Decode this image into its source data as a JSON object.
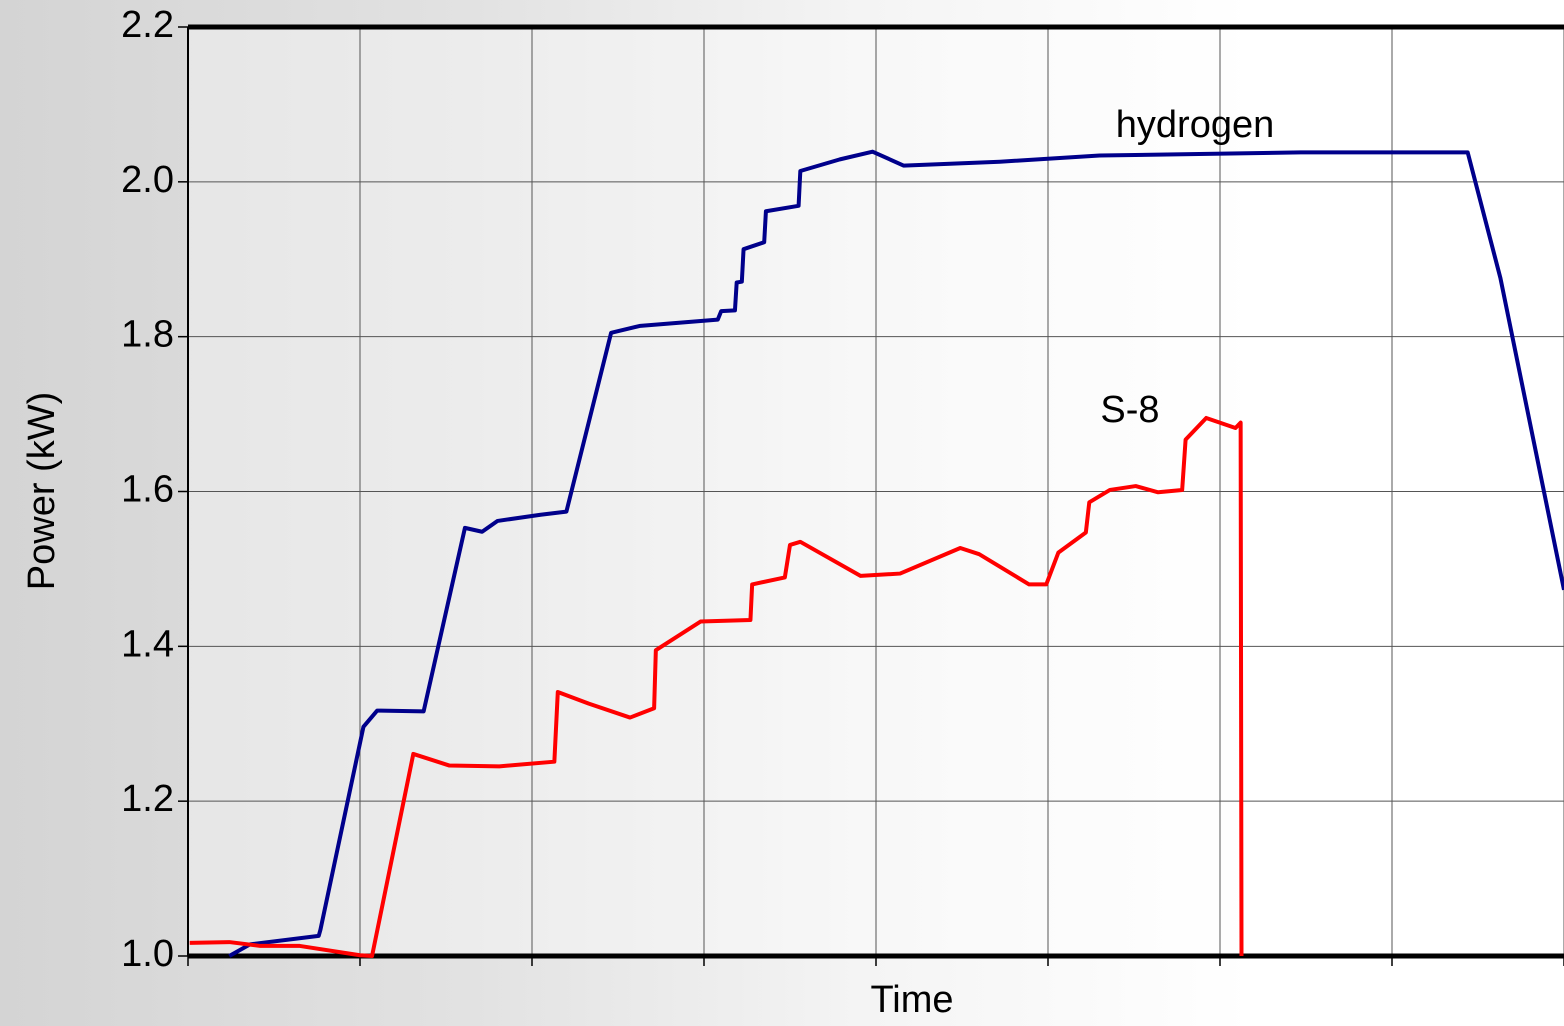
{
  "chart_data": {
    "type": "line",
    "x_label": "Time",
    "y_label": "Power (kW)",
    "xlim": [
      0,
      8
    ],
    "xticks": [
      0,
      1,
      2,
      3,
      4,
      5,
      6,
      7,
      8
    ],
    "ylim": [
      1.0,
      2.2
    ],
    "yticks": [
      {
        "value": 1.0,
        "label": "1.0"
      },
      1.2,
      1.4,
      1.6,
      1.8,
      {
        "value": 2.0,
        "label": "2.0"
      },
      2.2
    ],
    "grid": true,
    "series": [
      {
        "name": "hydrogen",
        "color": "#00008b",
        "x": [
          0.24,
          0.36,
          0.76,
          0.77,
          1.02,
          1.1,
          1.37,
          1.61,
          1.71,
          1.8,
          2.05,
          2.2,
          2.46,
          2.63,
          3.08,
          3.1,
          3.18,
          3.19,
          3.22,
          3.23,
          3.35,
          3.36,
          3.55,
          3.56,
          3.79,
          3.98,
          4.16,
          4.72,
          5.3,
          6.47,
          7.44,
          7.63,
          8.0
        ],
        "values": [
          1.0,
          1.015,
          1.026,
          1.034,
          1.296,
          1.317,
          1.316,
          1.553,
          1.548,
          1.562,
          1.57,
          1.574,
          1.805,
          1.814,
          1.822,
          1.833,
          1.834,
          1.87,
          1.871,
          1.913,
          1.922,
          1.962,
          1.969,
          2.014,
          2.029,
          2.039,
          2.021,
          2.026,
          2.034,
          2.038,
          2.038,
          1.876,
          1.473
        ]
      },
      {
        "name": "S-8",
        "color": "#ff0000",
        "x": [
          0.01,
          0.24,
          0.42,
          0.65,
          1.0,
          1.07,
          1.31,
          1.52,
          1.81,
          2.13,
          2.15,
          2.33,
          2.57,
          2.71,
          2.72,
          2.98,
          3.27,
          3.28,
          3.47,
          3.5,
          3.56,
          3.91,
          4.14,
          4.49,
          4.6,
          4.89,
          4.99,
          5.06,
          5.22,
          5.24,
          5.36,
          5.51,
          5.64,
          5.78,
          5.8,
          5.92,
          6.09,
          6.12,
          6.125
        ],
        "values": [
          1.017,
          1.018,
          1.013,
          1.013,
          1.001,
          1.0,
          1.261,
          1.246,
          1.245,
          1.251,
          1.341,
          1.326,
          1.308,
          1.32,
          1.395,
          1.432,
          1.434,
          1.48,
          1.489,
          1.531,
          1.535,
          1.491,
          1.494,
          1.527,
          1.519,
          1.48,
          1.48,
          1.521,
          1.547,
          1.586,
          1.602,
          1.607,
          1.599,
          1.602,
          1.667,
          1.695,
          1.682,
          1.689,
          1.0
        ]
      }
    ]
  }
}
